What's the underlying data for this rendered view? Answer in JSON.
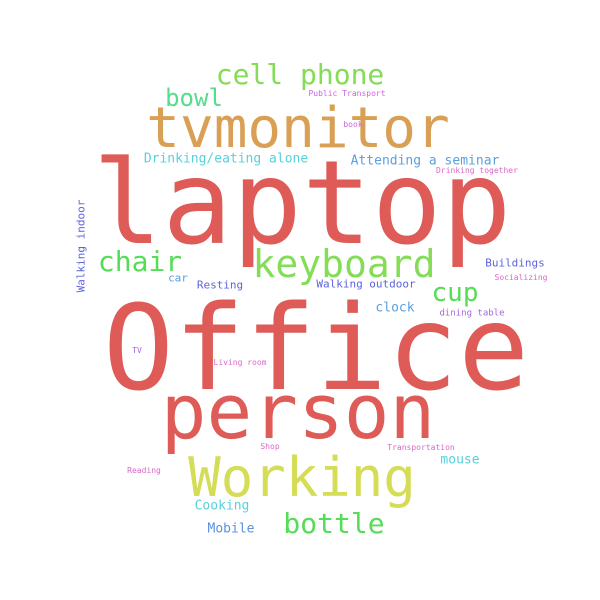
{
  "words": [
    {
      "text": "laptop",
      "color": "#de5b57"
    },
    {
      "text": "Office",
      "color": "#de5b57"
    },
    {
      "text": "person",
      "color": "#de5b57"
    },
    {
      "text": "tvmonitor",
      "color": "#d99f55"
    },
    {
      "text": "Working",
      "color": "#d4dd55"
    },
    {
      "text": "keyboard",
      "color": "#84dc57"
    },
    {
      "text": "cell phone",
      "color": "#84dc57"
    },
    {
      "text": "chair",
      "color": "#56dc57"
    },
    {
      "text": "bottle",
      "color": "#56dc57"
    },
    {
      "text": "bowl",
      "color": "#56dc8c"
    },
    {
      "text": "cup",
      "color": "#56dc57"
    },
    {
      "text": "Drinking/eating alone",
      "color": "#56d2dc"
    },
    {
      "text": "Attending a seminar",
      "color": "#5ba0dc"
    },
    {
      "text": "Walking indoor",
      "color": "#5b63dc"
    },
    {
      "text": "Buildings",
      "color": "#5b63dc"
    },
    {
      "text": "Walking outdoor",
      "color": "#5b63dc"
    },
    {
      "text": "Resting",
      "color": "#5b63dc"
    },
    {
      "text": "car",
      "color": "#5b9cdc"
    },
    {
      "text": "clock",
      "color": "#5ba0dc"
    },
    {
      "text": "mouse",
      "color": "#56d2dc"
    },
    {
      "text": "Cooking",
      "color": "#56d2dc"
    },
    {
      "text": "Mobile",
      "color": "#5b90dc"
    },
    {
      "text": "Public Transport",
      "color": "#c866dc"
    },
    {
      "text": "book",
      "color": "#c866dc"
    },
    {
      "text": "Drinking together",
      "color": "#dc66c8"
    },
    {
      "text": "Socializing",
      "color": "#dc66c8"
    },
    {
      "text": "dining table",
      "color": "#a466dc"
    },
    {
      "text": "TV",
      "color": "#a466dc"
    },
    {
      "text": "Living room",
      "color": "#dc66c8"
    },
    {
      "text": "Shop",
      "color": "#dc66c8"
    },
    {
      "text": "Transportation",
      "color": "#dc66c8"
    },
    {
      "text": "Reading",
      "color": "#dc66c8"
    }
  ]
}
